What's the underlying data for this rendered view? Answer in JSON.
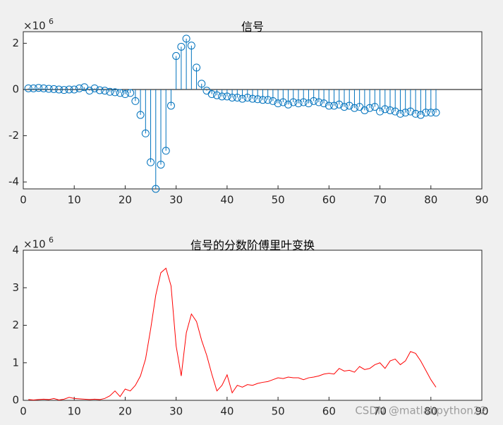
{
  "chart_data": [
    {
      "type": "stem",
      "title": "信号",
      "y_multiplier": "×10",
      "y_exponent": "6",
      "color": "#0072bd",
      "x": [
        1,
        2,
        3,
        4,
        5,
        6,
        7,
        8,
        9,
        10,
        11,
        12,
        13,
        14,
        15,
        16,
        17,
        18,
        19,
        20,
        21,
        22,
        23,
        24,
        25,
        26,
        27,
        28,
        29,
        30,
        31,
        32,
        33,
        34,
        35,
        36,
        37,
        38,
        39,
        40,
        41,
        42,
        43,
        44,
        45,
        46,
        47,
        48,
        49,
        50,
        51,
        52,
        53,
        54,
        55,
        56,
        57,
        58,
        59,
        60,
        61,
        62,
        63,
        64,
        65,
        66,
        67,
        68,
        69,
        70,
        71,
        72,
        73,
        74,
        75,
        76,
        77,
        78,
        79,
        80,
        81
      ],
      "values": [
        0.05,
        0.05,
        0.07,
        0.05,
        0.03,
        0.02,
        0,
        -0.02,
        0,
        0,
        0.05,
        0.1,
        -0.05,
        0.05,
        -0.03,
        -0.05,
        -0.1,
        -0.12,
        -0.15,
        -0.2,
        -0.15,
        -0.5,
        -1.1,
        -1.9,
        -3.15,
        -4.3,
        -3.25,
        -2.65,
        -0.7,
        1.45,
        1.85,
        2.2,
        1.9,
        0.95,
        0.25,
        -0.05,
        -0.2,
        -0.25,
        -0.3,
        -0.3,
        -0.35,
        -0.35,
        -0.4,
        -0.35,
        -0.4,
        -0.42,
        -0.45,
        -0.45,
        -0.5,
        -0.6,
        -0.55,
        -0.65,
        -0.55,
        -0.6,
        -0.55,
        -0.6,
        -0.5,
        -0.55,
        -0.6,
        -0.7,
        -0.7,
        -0.65,
        -0.75,
        -0.7,
        -0.8,
        -0.75,
        -0.9,
        -0.8,
        -0.75,
        -0.95,
        -0.85,
        -0.9,
        -0.95,
        -1.05,
        -1.0,
        -0.95,
        -1.05,
        -1.1,
        -1.0,
        -1.0,
        -1.0
      ],
      "xlim": [
        0,
        90
      ],
      "xticks": [
        0,
        10,
        20,
        30,
        40,
        50,
        60,
        70,
        80,
        90
      ],
      "ylim": [
        -4.3,
        2.5
      ],
      "yticks": [
        -4,
        -2,
        0,
        2
      ]
    },
    {
      "type": "line",
      "title": "信号的分数阶傅里叶变换",
      "y_multiplier": "×10",
      "y_exponent": "6",
      "color": "#ff0000",
      "x": [
        1,
        2,
        3,
        4,
        5,
        6,
        7,
        8,
        9,
        10,
        11,
        12,
        13,
        14,
        15,
        16,
        17,
        18,
        19,
        20,
        21,
        22,
        23,
        24,
        25,
        26,
        27,
        28,
        29,
        30,
        31,
        32,
        33,
        34,
        35,
        36,
        37,
        38,
        39,
        40,
        41,
        42,
        43,
        44,
        45,
        46,
        47,
        48,
        49,
        50,
        51,
        52,
        53,
        54,
        55,
        56,
        57,
        58,
        59,
        60,
        61,
        62,
        63,
        64,
        65,
        66,
        67,
        68,
        69,
        70,
        71,
        72,
        73,
        74,
        75,
        76,
        77,
        78,
        79,
        80,
        81
      ],
      "values": [
        0.02,
        0.01,
        0.02,
        0.03,
        0.02,
        0.05,
        0.01,
        0.03,
        0.08,
        0.05,
        0.04,
        0.03,
        0.02,
        0.03,
        0.02,
        0.05,
        0.12,
        0.25,
        0.1,
        0.3,
        0.25,
        0.4,
        0.65,
        1.1,
        1.9,
        2.8,
        3.4,
        3.52,
        3.05,
        1.45,
        0.65,
        1.8,
        2.3,
        2.1,
        1.6,
        1.2,
        0.7,
        0.25,
        0.4,
        0.68,
        0.2,
        0.4,
        0.35,
        0.42,
        0.4,
        0.45,
        0.48,
        0.5,
        0.55,
        0.6,
        0.58,
        0.62,
        0.6,
        0.6,
        0.55,
        0.6,
        0.62,
        0.65,
        0.7,
        0.72,
        0.7,
        0.85,
        0.78,
        0.8,
        0.75,
        0.9,
        0.82,
        0.85,
        0.95,
        1.0,
        0.85,
        1.05,
        1.1,
        0.95,
        1.05,
        1.3,
        1.25,
        1.05,
        0.8,
        0.55,
        0.35
      ],
      "xlim": [
        0,
        90
      ],
      "xticks": [
        0,
        10,
        20,
        30,
        40,
        50,
        60,
        70,
        80,
        90
      ],
      "ylim": [
        0,
        4
      ],
      "yticks": [
        0,
        1,
        2,
        3,
        4
      ]
    }
  ],
  "watermark": "CSDN @matlabpython22"
}
